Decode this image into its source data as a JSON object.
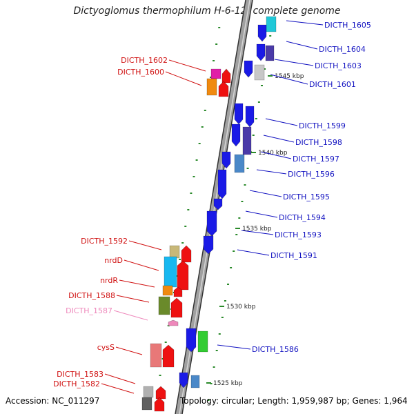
{
  "title": "Dictyoglomus thermophilum H-6-12, complete genome",
  "footer": {
    "accession": "Accession: NC_011297",
    "summary": "Topology: circular; Length: 1,959,987 bp; Genes: 1,964"
  },
  "colors": {
    "right_label": "#1010c0",
    "left_label": "#d01010",
    "pseudo_label": "#ee88bb",
    "backbone": "#a0a0a0",
    "tick_mark": "#2a8a2a"
  },
  "ticks": [
    {
      "label": "1545 kbp"
    },
    {
      "label": "1540 kbp"
    },
    {
      "label": "1535 kbp"
    },
    {
      "label": "1530 kbp"
    },
    {
      "label": "1525 kbp"
    }
  ],
  "right_labels": [
    "DICTH_1605",
    "DICTH_1604",
    "DICTH_1603",
    "DICTH_1601",
    "DICTH_1599",
    "DICTH_1598",
    "DICTH_1597",
    "DICTH_1596",
    "DICTH_1595",
    "DICTH_1594",
    "DICTH_1593",
    "DICTH_1591",
    "DICTH_1586"
  ],
  "left_labels": [
    "DICTH_1602",
    "DICTH_1600",
    "DICTH_1592",
    "nrdD",
    "nrdR",
    "DICTH_1588",
    "DICTH_1587",
    "cysS",
    "DICTH_1583",
    "DICTH_1582"
  ]
}
